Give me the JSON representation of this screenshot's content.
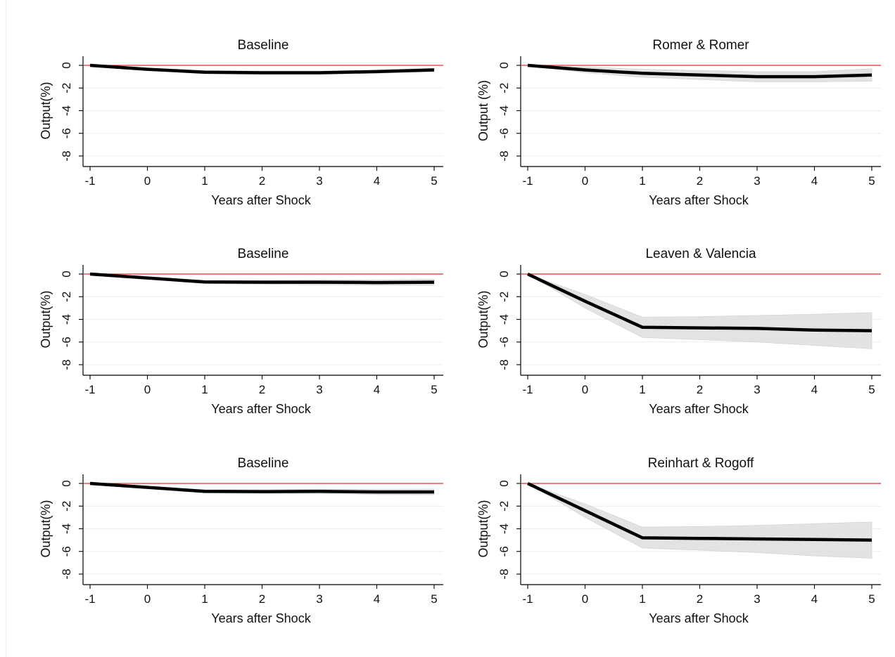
{
  "header": {
    "title_fragment": ""
  },
  "chart_data": [
    {
      "type": "line",
      "title": "Baseline",
      "xlabel": "Years after Shock",
      "ylabel": "Output(%)",
      "x": [
        -1,
        0,
        1,
        2,
        3,
        4,
        5
      ],
      "xticks": [
        "-1",
        "0",
        "1",
        "2",
        "3",
        "4",
        "5"
      ],
      "yticks": [
        "0",
        "-2",
        "-4",
        "-6",
        "-8"
      ],
      "xlim": [
        -1.15,
        5.15
      ],
      "ylim": [
        -8.7,
        0.8
      ],
      "reference_line": {
        "y": 0,
        "color": "#e03030"
      },
      "grid": "horizontal",
      "series": [
        {
          "values": [
            0,
            -0.35,
            -0.6,
            -0.65,
            -0.65,
            -0.55,
            -0.4
          ],
          "lower": [
            0,
            -0.45,
            -0.75,
            -0.8,
            -0.8,
            -0.7,
            -0.55
          ],
          "upper": [
            0,
            -0.25,
            -0.45,
            -0.5,
            -0.5,
            -0.4,
            -0.25
          ]
        }
      ]
    },
    {
      "type": "line",
      "title": "Romer & Romer",
      "xlabel": "Years after Shock",
      "ylabel": "Output (%)",
      "x": [
        -1,
        0,
        1,
        2,
        3,
        4,
        5
      ],
      "xticks": [
        "-1",
        "0",
        "1",
        "2",
        "3",
        "4",
        "5"
      ],
      "yticks": [
        "0",
        "-2",
        "-4",
        "-6",
        "-8"
      ],
      "xlim": [
        -1.15,
        5.15
      ],
      "ylim": [
        -8.7,
        0.8
      ],
      "reference_line": {
        "y": 0,
        "color": "#e03030"
      },
      "grid": "horizontal",
      "series": [
        {
          "values": [
            0,
            -0.4,
            -0.7,
            -0.85,
            -1.0,
            -1.0,
            -0.85
          ],
          "lower": [
            0,
            -0.65,
            -1.05,
            -1.25,
            -1.45,
            -1.45,
            -1.4
          ],
          "upper": [
            0,
            -0.15,
            -0.35,
            -0.45,
            -0.55,
            -0.55,
            -0.3
          ]
        }
      ]
    },
    {
      "type": "line",
      "title": "Baseline",
      "xlabel": "Years after Shock",
      "ylabel": "Output(%)",
      "x": [
        -1,
        0,
        1,
        2,
        3,
        4,
        5
      ],
      "xticks": [
        "-1",
        "0",
        "1",
        "2",
        "3",
        "4",
        "5"
      ],
      "yticks": [
        "0",
        "-2",
        "-4",
        "-6",
        "-8"
      ],
      "xlim": [
        -1.15,
        5.15
      ],
      "ylim": [
        -8.7,
        0.8
      ],
      "reference_line": {
        "y": 0,
        "color": "#e03030"
      },
      "grid": "horizontal",
      "series": [
        {
          "values": [
            0,
            -0.35,
            -0.7,
            -0.72,
            -0.72,
            -0.75,
            -0.72
          ],
          "lower": [
            0,
            -0.45,
            -0.85,
            -0.9,
            -0.95,
            -0.98,
            -1.0
          ],
          "upper": [
            0,
            -0.25,
            -0.55,
            -0.55,
            -0.5,
            -0.52,
            -0.45
          ]
        }
      ]
    },
    {
      "type": "line",
      "title": "Leaven & Valencia",
      "xlabel": "Years after Shock",
      "ylabel": "Output(%)",
      "x": [
        -1,
        0,
        1,
        2,
        3,
        4,
        5
      ],
      "xticks": [
        "-1",
        "0",
        "1",
        "2",
        "3",
        "4",
        "5"
      ],
      "yticks": [
        "0",
        "-2",
        "-4",
        "-6",
        "-8"
      ],
      "xlim": [
        -1.15,
        5.15
      ],
      "ylim": [
        -8.7,
        0.8
      ],
      "reference_line": {
        "y": 0,
        "color": "#e03030"
      },
      "grid": "horizontal",
      "series": [
        {
          "values": [
            0,
            -2.4,
            -4.7,
            -4.75,
            -4.8,
            -4.95,
            -5.0
          ],
          "lower": [
            0,
            -3.0,
            -5.6,
            -5.8,
            -6.0,
            -6.3,
            -6.6
          ],
          "upper": [
            0,
            -1.8,
            -3.8,
            -3.75,
            -3.65,
            -3.55,
            -3.4
          ]
        }
      ]
    },
    {
      "type": "line",
      "title": "Baseline",
      "xlabel": "Years after Shock",
      "ylabel": "Output(%)",
      "x": [
        -1,
        0,
        1,
        2,
        3,
        4,
        5
      ],
      "xticks": [
        "-1",
        "0",
        "1",
        "2",
        "3",
        "4",
        "5"
      ],
      "yticks": [
        "0",
        "-2",
        "-4",
        "-6",
        "-8"
      ],
      "xlim": [
        -1.15,
        5.15
      ],
      "ylim": [
        -8.7,
        0.8
      ],
      "reference_line": {
        "y": 0,
        "color": "#e03030"
      },
      "grid": "horizontal",
      "series": [
        {
          "values": [
            0,
            -0.35,
            -0.7,
            -0.72,
            -0.7,
            -0.75,
            -0.75
          ],
          "lower": [
            0,
            -0.45,
            -0.85,
            -0.9,
            -0.9,
            -0.98,
            -1.0
          ],
          "upper": [
            0,
            -0.25,
            -0.55,
            -0.55,
            -0.5,
            -0.52,
            -0.5
          ]
        }
      ]
    },
    {
      "type": "line",
      "title": "Reinhart & Rogoff",
      "xlabel": "Years after Shock",
      "ylabel": "Output(%)",
      "x": [
        -1,
        0,
        1,
        2,
        3,
        4,
        5
      ],
      "xticks": [
        "-1",
        "0",
        "1",
        "2",
        "3",
        "4",
        "5"
      ],
      "yticks": [
        "0",
        "-2",
        "-4",
        "-6",
        "-8"
      ],
      "xlim": [
        -1.15,
        5.15
      ],
      "ylim": [
        -8.7,
        0.8
      ],
      "reference_line": {
        "y": 0,
        "color": "#e03030"
      },
      "grid": "horizontal",
      "series": [
        {
          "values": [
            0,
            -2.4,
            -4.8,
            -4.85,
            -4.9,
            -4.95,
            -5.0
          ],
          "lower": [
            0,
            -3.0,
            -5.7,
            -5.9,
            -6.1,
            -6.4,
            -6.6
          ],
          "upper": [
            0,
            -1.8,
            -3.85,
            -3.8,
            -3.7,
            -3.55,
            -3.4
          ]
        }
      ]
    }
  ]
}
